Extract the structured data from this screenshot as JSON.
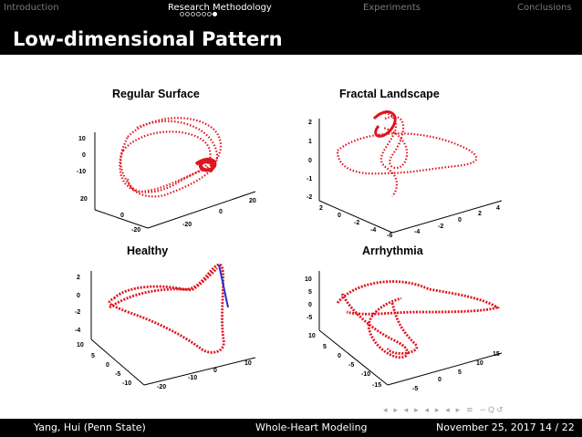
{
  "nav": {
    "sections": [
      "Introduction",
      "Research Methodology",
      "Experiments",
      "Conclusions"
    ],
    "active_index": 1,
    "progress_dots_total": 7,
    "progress_dots_filled": 1
  },
  "slide": {
    "title": "Low-dimensional Pattern"
  },
  "plots": [
    {
      "title": "Regular Surface",
      "zticks": [
        "10",
        "0",
        "-10"
      ],
      "xticks": [
        "20",
        "0",
        "-20"
      ],
      "yticks": [
        "-20",
        "0",
        "20"
      ]
    },
    {
      "title": "Fractal Landscape",
      "zticks": [
        "2",
        "1",
        "0",
        "-1",
        "-2"
      ],
      "xticks": [
        "2",
        "0",
        "-2",
        "-4",
        "-6"
      ],
      "yticks": [
        "-4",
        "-2",
        "0",
        "2",
        "4"
      ]
    },
    {
      "title": "Healthy",
      "zticks": [
        "2",
        "0",
        "-2",
        "-4"
      ],
      "xticks": [
        "10",
        "5",
        "0",
        "-5",
        "-10"
      ],
      "yticks": [
        "-20",
        "-10",
        "0",
        "10"
      ]
    },
    {
      "title": "Arrhythmia",
      "zticks": [
        "10",
        "5",
        "0",
        "-5"
      ],
      "xticks": [
        "10",
        "5",
        "0",
        "-5",
        "-10",
        "-15"
      ],
      "yticks": [
        "-5",
        "0",
        "5",
        "10",
        "15"
      ]
    }
  ],
  "nav_symbols": "◂ ▸ ◂ ▸ ◂ ▸ ◂ ▸ ≡ ∽Q↺",
  "footer": {
    "author": "Yang, Hui  (Penn State)",
    "title": "Whole-Heart Modeling",
    "date": "November 25, 2017",
    "page": "14 / 22"
  },
  "colors": {
    "trajectory": "#e0141e",
    "trajectory_dot": "#7a2a7e",
    "segment_blue": "#2233cc",
    "bar": "#000000"
  }
}
